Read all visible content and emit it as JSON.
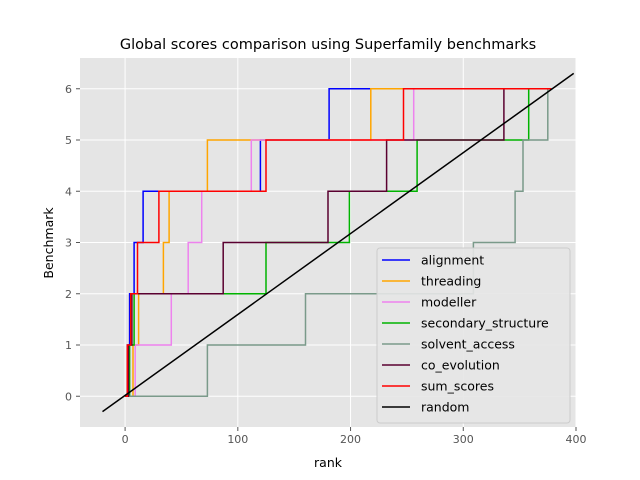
{
  "chart_data": {
    "type": "line",
    "title": "Global scores comparison using Superfamily benchmarks",
    "xlabel": "rank",
    "ylabel": "Benchmark",
    "xlim": [
      -40,
      400
    ],
    "ylim": [
      -0.6,
      6.6
    ],
    "xticks": [
      0,
      100,
      200,
      300,
      400
    ],
    "yticks": [
      0,
      1,
      2,
      3,
      4,
      5,
      6
    ],
    "grid": true,
    "legend_position": "lower right",
    "background": "#e5e5e5",
    "series": [
      {
        "name": "alignment",
        "color": "#0000ff",
        "x": [
          0,
          2,
          2,
          4,
          4,
          8,
          8,
          12,
          12,
          16,
          16,
          30,
          30,
          120,
          120,
          181,
          181,
          360
        ],
        "y": [
          0,
          0,
          1,
          1,
          2,
          2,
          3,
          3,
          3,
          3,
          4,
          4,
          4,
          4,
          5,
          5,
          6,
          6
        ]
      },
      {
        "name": "threading",
        "color": "#ffa500",
        "x": [
          0,
          7,
          7,
          12,
          12,
          34,
          34,
          39,
          39,
          73,
          73,
          124,
          124,
          218,
          218,
          378
        ],
        "y": [
          0,
          0,
          1,
          1,
          2,
          2,
          3,
          3,
          4,
          4,
          5,
          5,
          5,
          5,
          6,
          6
        ]
      },
      {
        "name": "modeller",
        "color": "#ee82ee",
        "x": [
          0,
          9,
          9,
          41,
          41,
          56,
          56,
          68,
          68,
          112,
          112,
          125,
          125,
          256,
          256,
          378
        ],
        "y": [
          0,
          0,
          1,
          1,
          2,
          2,
          3,
          3,
          4,
          4,
          5,
          5,
          5,
          5,
          6,
          6
        ]
      },
      {
        "name": "secondary_structure",
        "color": "#00b400",
        "x": [
          0,
          4,
          4,
          8,
          8,
          13,
          13,
          91,
          91,
          125,
          125,
          199,
          199,
          259,
          259,
          358,
          358,
          378
        ],
        "y": [
          0,
          0,
          1,
          1,
          2,
          2,
          2,
          2,
          2,
          2,
          3,
          3,
          4,
          4,
          5,
          5,
          6,
          6
        ]
      },
      {
        "name": "solvent_access",
        "color": "#7a9a8a",
        "x": [
          0,
          73,
          73,
          79,
          79,
          160,
          160,
          309,
          309,
          346,
          346,
          353,
          353,
          375,
          375,
          378
        ],
        "y": [
          0,
          0,
          1,
          1,
          1,
          1,
          2,
          2,
          3,
          3,
          4,
          4,
          5,
          5,
          6,
          6
        ]
      },
      {
        "name": "co_evolution",
        "color": "#5a0030",
        "x": [
          0,
          3,
          3,
          6,
          6,
          10,
          10,
          87,
          87,
          180,
          180,
          232,
          232,
          336,
          336,
          378
        ],
        "y": [
          0,
          0,
          1,
          1,
          2,
          2,
          2,
          2,
          3,
          3,
          4,
          4,
          5,
          5,
          6,
          6
        ]
      },
      {
        "name": "sum_scores",
        "color": "#ff0000",
        "x": [
          0,
          2,
          2,
          5,
          5,
          11,
          11,
          30,
          30,
          125,
          125,
          247,
          247,
          378
        ],
        "y": [
          0,
          0,
          1,
          1,
          2,
          2,
          3,
          3,
          4,
          4,
          5,
          5,
          6,
          6
        ]
      },
      {
        "name": "random",
        "color": "#000000",
        "x": [
          -20,
          398
        ],
        "y": [
          -0.3,
          6.3
        ]
      }
    ]
  }
}
